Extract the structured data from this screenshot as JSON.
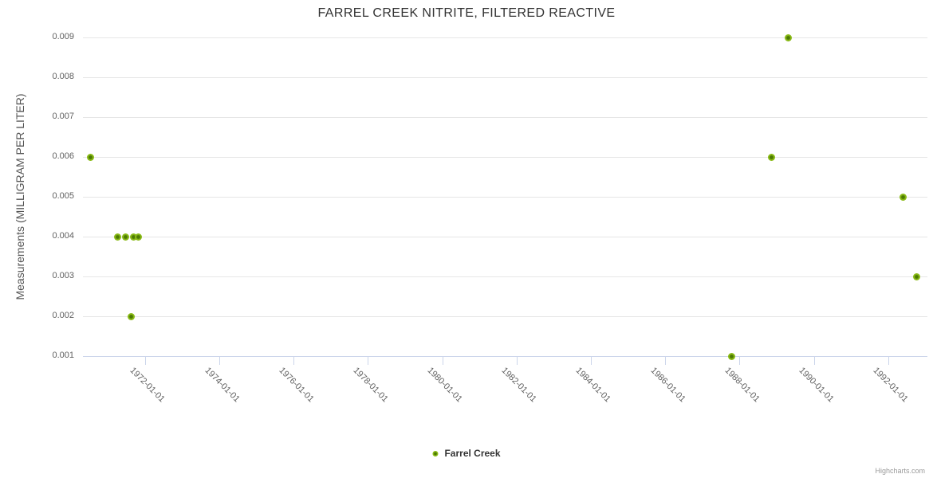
{
  "chart_data": {
    "type": "scatter",
    "title": "FARREL CREEK NITRITE, FILTERED REACTIVE",
    "xlabel": "",
    "ylabel": "Measurements (MILLIGRAM PER LITER)",
    "grid": true,
    "legend_position": "bottom-center",
    "x_axis": {
      "type": "datetime",
      "min": "1970-04-27",
      "max": "1993-01-18",
      "tick_labels": [
        "1972-01-01",
        "1974-01-01",
        "1976-01-01",
        "1978-01-01",
        "1980-01-01",
        "1982-01-01",
        "1984-01-01",
        "1986-01-01",
        "1988-01-01",
        "1990-01-01",
        "1992-01-01"
      ]
    },
    "y_axis": {
      "min": 0.001,
      "max": 0.009,
      "tick_labels": [
        "0.001",
        "0.002",
        "0.003",
        "0.004",
        "0.005",
        "0.006",
        "0.007",
        "0.008",
        "0.009"
      ]
    },
    "series": [
      {
        "name": "Farrel Creek",
        "points": [
          {
            "date": "1970-07-09",
            "value": 0.006
          },
          {
            "date": "1971-04-01",
            "value": 0.004
          },
          {
            "date": "1971-06-17",
            "value": 0.004
          },
          {
            "date": "1971-08-18",
            "value": 0.002
          },
          {
            "date": "1971-09-05",
            "value": 0.004
          },
          {
            "date": "1971-10-23",
            "value": 0.004
          },
          {
            "date": "1987-10-16",
            "value": 0.001
          },
          {
            "date": "1988-11-10",
            "value": 0.006
          },
          {
            "date": "1989-04-23",
            "value": 0.009
          },
          {
            "date": "1992-05-22",
            "value": 0.005
          },
          {
            "date": "1992-10-01",
            "value": 0.003
          }
        ]
      }
    ]
  },
  "credits": {
    "label": "Highcharts.com"
  },
  "colors": {
    "marker_outer": "#8abb17",
    "marker_inner": "#4c7a03",
    "grid": "#e6e6e6",
    "axis_line": "#ccd6eb",
    "title_text": "#333333",
    "axis_label": "#606060",
    "axis_title": "#555555",
    "legend_text": "#333333",
    "credits_text": "#999999"
  }
}
